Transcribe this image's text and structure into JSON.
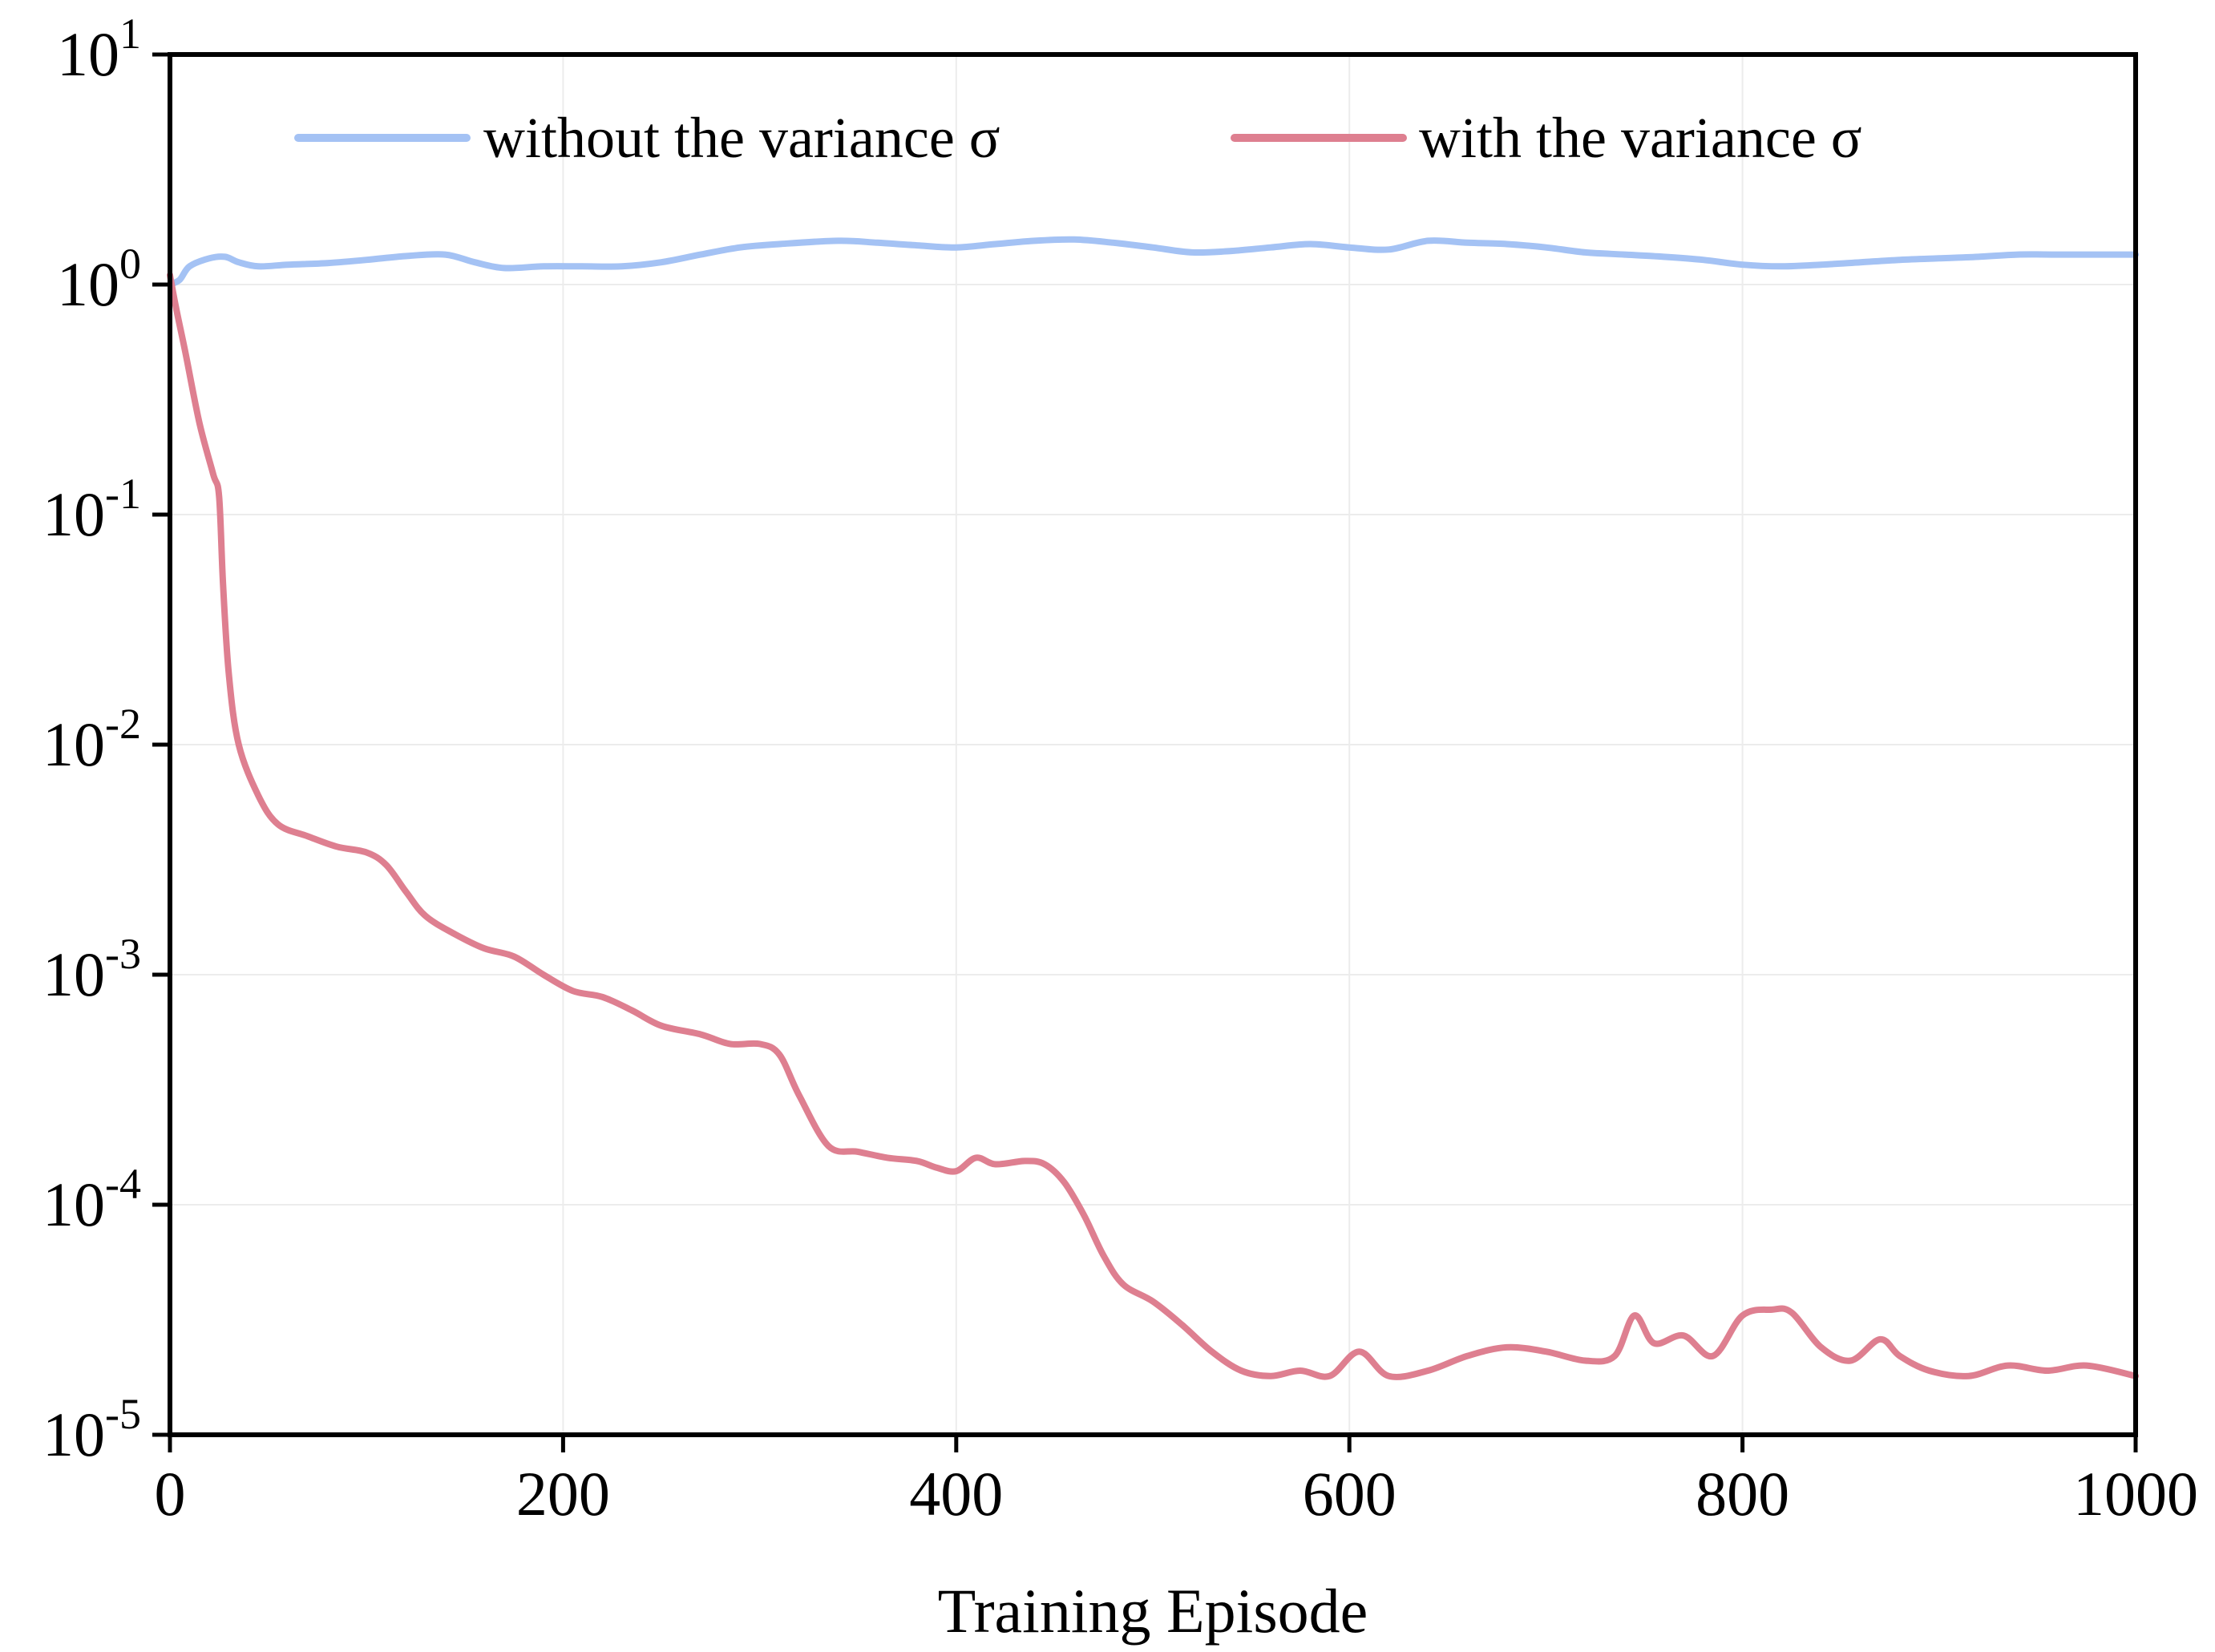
{
  "chart_data": {
    "type": "line",
    "title": "",
    "xlabel": "Training Episode",
    "ylabel": "",
    "xlim": [
      0,
      1000
    ],
    "ylim": [
      1e-05,
      10
    ],
    "yscale": "log",
    "grid": true,
    "legend_position": "top",
    "x_ticks": [
      "0",
      "200",
      "400",
      "600",
      "800",
      "1000"
    ],
    "y_ticks": [
      {
        "base": "10",
        "exp": "1"
      },
      {
        "base": "10",
        "exp": "0"
      },
      {
        "base": "10",
        "exp": "-1"
      },
      {
        "base": "10",
        "exp": "-2"
      },
      {
        "base": "10",
        "exp": "-3"
      },
      {
        "base": "10",
        "exp": "-4"
      },
      {
        "base": "10",
        "exp": "-5"
      }
    ],
    "series": [
      {
        "name": "without the variance σ",
        "color": "#a4c2f4",
        "points": [
          [
            0,
            1.0
          ],
          [
            5,
            1.05
          ],
          [
            10,
            1.2
          ],
          [
            20,
            1.3
          ],
          [
            28,
            1.32
          ],
          [
            35,
            1.25
          ],
          [
            45,
            1.2
          ],
          [
            60,
            1.22
          ],
          [
            80,
            1.24
          ],
          [
            100,
            1.28
          ],
          [
            120,
            1.33
          ],
          [
            140,
            1.35
          ],
          [
            155,
            1.25
          ],
          [
            170,
            1.18
          ],
          [
            190,
            1.2
          ],
          [
            210,
            1.2
          ],
          [
            230,
            1.2
          ],
          [
            250,
            1.25
          ],
          [
            270,
            1.35
          ],
          [
            290,
            1.45
          ],
          [
            310,
            1.5
          ],
          [
            340,
            1.55
          ],
          [
            360,
            1.52
          ],
          [
            380,
            1.48
          ],
          [
            400,
            1.45
          ],
          [
            420,
            1.5
          ],
          [
            440,
            1.55
          ],
          [
            460,
            1.57
          ],
          [
            480,
            1.52
          ],
          [
            500,
            1.45
          ],
          [
            520,
            1.38
          ],
          [
            540,
            1.4
          ],
          [
            560,
            1.45
          ],
          [
            580,
            1.5
          ],
          [
            600,
            1.45
          ],
          [
            620,
            1.42
          ],
          [
            640,
            1.55
          ],
          [
            660,
            1.52
          ],
          [
            680,
            1.5
          ],
          [
            700,
            1.45
          ],
          [
            720,
            1.38
          ],
          [
            740,
            1.35
          ],
          [
            760,
            1.32
          ],
          [
            780,
            1.28
          ],
          [
            800,
            1.22
          ],
          [
            820,
            1.2
          ],
          [
            840,
            1.22
          ],
          [
            860,
            1.25
          ],
          [
            880,
            1.28
          ],
          [
            900,
            1.3
          ],
          [
            920,
            1.32
          ],
          [
            940,
            1.35
          ],
          [
            960,
            1.35
          ],
          [
            980,
            1.35
          ],
          [
            1000,
            1.35
          ]
        ]
      },
      {
        "name": "with the variance σ",
        "color": "#de7f90",
        "points": [
          [
            0,
            1.1
          ],
          [
            3,
            0.8
          ],
          [
            8,
            0.5
          ],
          [
            15,
            0.25
          ],
          [
            22,
            0.15
          ],
          [
            25,
            0.12
          ],
          [
            27,
            0.05
          ],
          [
            30,
            0.02
          ],
          [
            35,
            0.01
          ],
          [
            45,
            0.006
          ],
          [
            55,
            0.0045
          ],
          [
            70,
            0.004
          ],
          [
            85,
            0.0036
          ],
          [
            100,
            0.0034
          ],
          [
            110,
            0.003
          ],
          [
            120,
            0.0023
          ],
          [
            130,
            0.0018
          ],
          [
            145,
            0.0015
          ],
          [
            160,
            0.0013
          ],
          [
            175,
            0.0012
          ],
          [
            190,
            0.001
          ],
          [
            205,
            0.00085
          ],
          [
            220,
            0.0008
          ],
          [
            235,
            0.0007
          ],
          [
            250,
            0.0006
          ],
          [
            270,
            0.00055
          ],
          [
            285,
            0.0005
          ],
          [
            300,
            0.0005
          ],
          [
            310,
            0.00045
          ],
          [
            320,
            0.0003
          ],
          [
            335,
            0.00018
          ],
          [
            350,
            0.00017
          ],
          [
            365,
            0.00016
          ],
          [
            380,
            0.000155
          ],
          [
            390,
            0.000145
          ],
          [
            400,
            0.00014
          ],
          [
            410,
            0.00016
          ],
          [
            420,
            0.00015
          ],
          [
            435,
            0.000155
          ],
          [
            445,
            0.00015
          ],
          [
            455,
            0.000125
          ],
          [
            465,
            9e-05
          ],
          [
            475,
            6e-05
          ],
          [
            485,
            4.5e-05
          ],
          [
            500,
            3.8e-05
          ],
          [
            515,
            3e-05
          ],
          [
            530,
            2.3e-05
          ],
          [
            545,
            1.9e-05
          ],
          [
            560,
            1.8e-05
          ],
          [
            575,
            1.9e-05
          ],
          [
            590,
            1.8e-05
          ],
          [
            605,
            2.3e-05
          ],
          [
            620,
            1.8e-05
          ],
          [
            640,
            1.9e-05
          ],
          [
            660,
            2.2e-05
          ],
          [
            680,
            2.4e-05
          ],
          [
            700,
            2.3e-05
          ],
          [
            720,
            2.1e-05
          ],
          [
            735,
            2.2e-05
          ],
          [
            745,
            3.3e-05
          ],
          [
            755,
            2.5e-05
          ],
          [
            770,
            2.7e-05
          ],
          [
            785,
            2.2e-05
          ],
          [
            800,
            3.3e-05
          ],
          [
            815,
            3.5e-05
          ],
          [
            825,
            3.4e-05
          ],
          [
            840,
            2.4e-05
          ],
          [
            855,
            2.1e-05
          ],
          [
            870,
            2.6e-05
          ],
          [
            880,
            2.2e-05
          ],
          [
            895,
            1.9e-05
          ],
          [
            915,
            1.8e-05
          ],
          [
            935,
            2e-05
          ],
          [
            955,
            1.9e-05
          ],
          [
            975,
            2e-05
          ],
          [
            1000,
            1.8e-05
          ]
        ]
      }
    ]
  }
}
